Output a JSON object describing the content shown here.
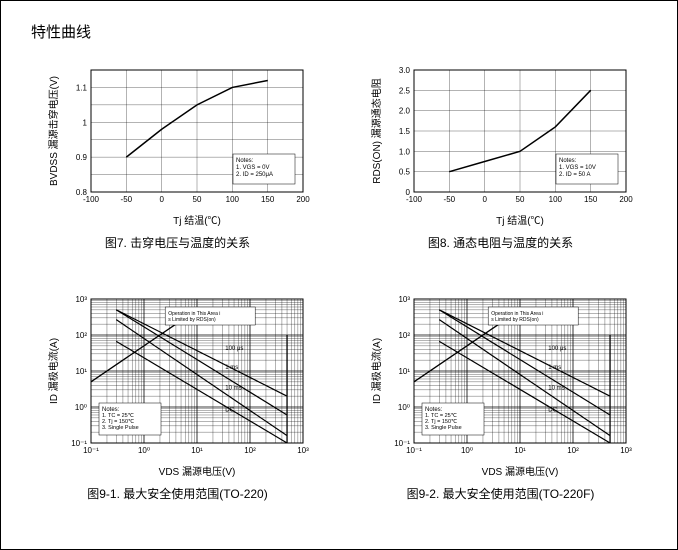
{
  "section_title": "特性曲线",
  "chart7": {
    "type": "line",
    "caption": "图7. 击穿电压与温度的关系",
    "ylabel": "BVDSS 漏源击穿电压(V)",
    "xlabel": "Tj 结温(℃)",
    "xticks": [
      -100,
      -50,
      0,
      50,
      100,
      150,
      200
    ],
    "yticks": [
      0.8,
      0.85,
      0.9,
      0.95,
      1.0,
      1.05,
      1.1,
      1.15
    ],
    "ytick_labels": [
      "0.8",
      "",
      "0.9",
      "",
      "1",
      "",
      "1.1",
      ""
    ],
    "xlim": [
      -100,
      200
    ],
    "ylim": [
      0.8,
      1.15
    ],
    "points": [
      [
        -50,
        0.9
      ],
      [
        0,
        0.98
      ],
      [
        50,
        1.05
      ],
      [
        100,
        1.1
      ],
      [
        150,
        1.12
      ]
    ],
    "line_color": "#000000",
    "notes_title": "Notes:",
    "notes": [
      "1. VGS = 0V",
      "2. ID = 250μA"
    ],
    "grid_color": "#dddddd",
    "background": "#ffffff"
  },
  "chart8": {
    "type": "line",
    "caption": "图8. 通态电阻与温度的关系",
    "ylabel": "RDS(ON) 漏源通态电阻",
    "xlabel": "Tj 结温(℃)",
    "xticks": [
      -100,
      -50,
      0,
      50,
      100,
      150,
      200
    ],
    "yticks": [
      0,
      0.5,
      1.0,
      1.5,
      2.0,
      2.5,
      3.0
    ],
    "ytick_labels": [
      "0",
      "0.5",
      "1.0",
      "1.5",
      "2.0",
      "2.5",
      "3.0"
    ],
    "xlim": [
      -100,
      200
    ],
    "ylim": [
      0,
      3.0
    ],
    "points": [
      [
        -50,
        0.5
      ],
      [
        0,
        0.75
      ],
      [
        50,
        1.0
      ],
      [
        100,
        1.6
      ],
      [
        150,
        2.5
      ]
    ],
    "line_color": "#000000",
    "notes_title": "Notes:",
    "notes": [
      "1. VGS = 10V",
      "2. ID = 50 A"
    ],
    "grid_color": "#dddddd",
    "background": "#ffffff"
  },
  "chart91": {
    "type": "soa",
    "caption": "图9-1. 最大安全使用范围(TO-220)",
    "ylabel": "ID 漏极电流(A)",
    "xlabel": "VDS 漏源电压(V)",
    "xticks": [
      "10⁻¹",
      "10⁰",
      "10¹",
      "10²",
      "10³"
    ],
    "yticks": [
      "10⁻¹",
      "10⁰",
      "10¹",
      "10²",
      "10³"
    ],
    "op_label": "Operation in This Area is Limited by RDS(on)",
    "curve_labels": [
      "100 μs",
      "1 ms",
      "10 ms",
      "DC"
    ],
    "notes_title": "Notes:",
    "notes": [
      "1. TC = 25℃",
      "2. Tj = 150℃",
      "3. Single Pulse"
    ],
    "line_color": "#000000",
    "background": "#ffffff"
  },
  "chart92": {
    "type": "soa",
    "caption": "图9-2. 最大安全使用范围(TO-220F)",
    "ylabel": "ID 漏极电流(A)",
    "xlabel": "VDS 漏源电压(V)",
    "xticks": [
      "10⁻¹",
      "10⁰",
      "10¹",
      "10²",
      "10³"
    ],
    "yticks": [
      "10⁻¹",
      "10⁰",
      "10¹",
      "10²",
      "10³"
    ],
    "op_label": "Operation in This Area is Limited by RDS(on)",
    "curve_labels": [
      "100 μs",
      "1 ms",
      "10 ms",
      "DC"
    ],
    "notes_title": "Notes:",
    "notes": [
      "1. TC = 25℃",
      "2. Tj = 150℃",
      "3. Single Pulse"
    ],
    "line_color": "#000000",
    "background": "#ffffff"
  }
}
